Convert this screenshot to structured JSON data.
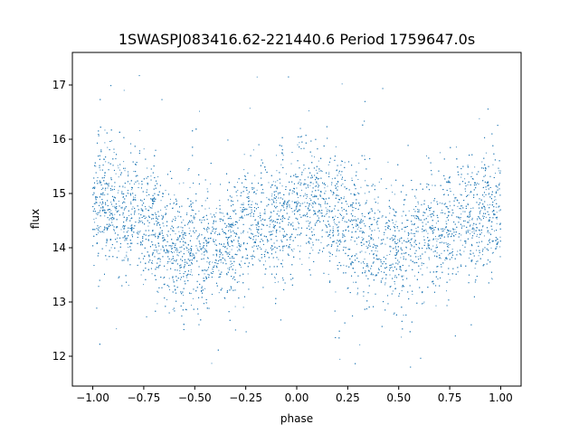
{
  "chart_data": {
    "type": "scatter",
    "title": "1SWASPJ083416.62-221440.6 Period 1759647.0s",
    "xlabel": "phase",
    "ylabel": "flux",
    "xlim": [
      -1.1,
      1.1
    ],
    "ylim": [
      11.45,
      17.6
    ],
    "xticks": [
      {
        "value": -1.0,
        "label": "−1.00"
      },
      {
        "value": -0.75,
        "label": "−0.75"
      },
      {
        "value": -0.5,
        "label": "−0.50"
      },
      {
        "value": -0.25,
        "label": "−0.25"
      },
      {
        "value": 0.0,
        "label": "0.00"
      },
      {
        "value": 0.25,
        "label": "0.25"
      },
      {
        "value": 0.5,
        "label": "0.50"
      },
      {
        "value": 0.75,
        "label": "0.75"
      },
      {
        "value": 1.0,
        "label": "1.00"
      }
    ],
    "yticks": [
      {
        "value": 12,
        "label": "12"
      },
      {
        "value": 13,
        "label": "13"
      },
      {
        "value": 14,
        "label": "14"
      },
      {
        "value": 15,
        "label": "15"
      },
      {
        "value": 16,
        "label": "16"
      },
      {
        "value": 17,
        "label": "17"
      }
    ],
    "grid": false,
    "legend": "none",
    "marker_color": "#1f77b4",
    "series": [
      {
        "x_range": [
          -1.0,
          1.0
        ],
        "phase_profile": [
          {
            "x": -1.0,
            "y": 14.6
          },
          {
            "x": -0.95,
            "y": 14.9
          },
          {
            "x": -0.85,
            "y": 14.8
          },
          {
            "x": -0.75,
            "y": 14.5
          },
          {
            "x": -0.65,
            "y": 14.2
          },
          {
            "x": -0.55,
            "y": 14.0
          },
          {
            "x": -0.45,
            "y": 13.9
          },
          {
            "x": -0.35,
            "y": 14.2
          },
          {
            "x": -0.25,
            "y": 14.4
          },
          {
            "x": -0.15,
            "y": 14.5
          },
          {
            "x": -0.05,
            "y": 14.6
          },
          {
            "x": 0.05,
            "y": 14.8
          },
          {
            "x": 0.15,
            "y": 14.7
          },
          {
            "x": 0.25,
            "y": 14.5
          },
          {
            "x": 0.35,
            "y": 14.2
          },
          {
            "x": 0.45,
            "y": 14.0
          },
          {
            "x": 0.55,
            "y": 13.9
          },
          {
            "x": 0.65,
            "y": 14.2
          },
          {
            "x": 0.75,
            "y": 14.4
          },
          {
            "x": 0.85,
            "y": 14.5
          },
          {
            "x": 0.95,
            "y": 14.6
          },
          {
            "x": 1.0,
            "y": 14.6
          }
        ],
        "scatter_sd": 0.45,
        "flux_min": 11.7,
        "flux_max": 17.3
      }
    ]
  }
}
